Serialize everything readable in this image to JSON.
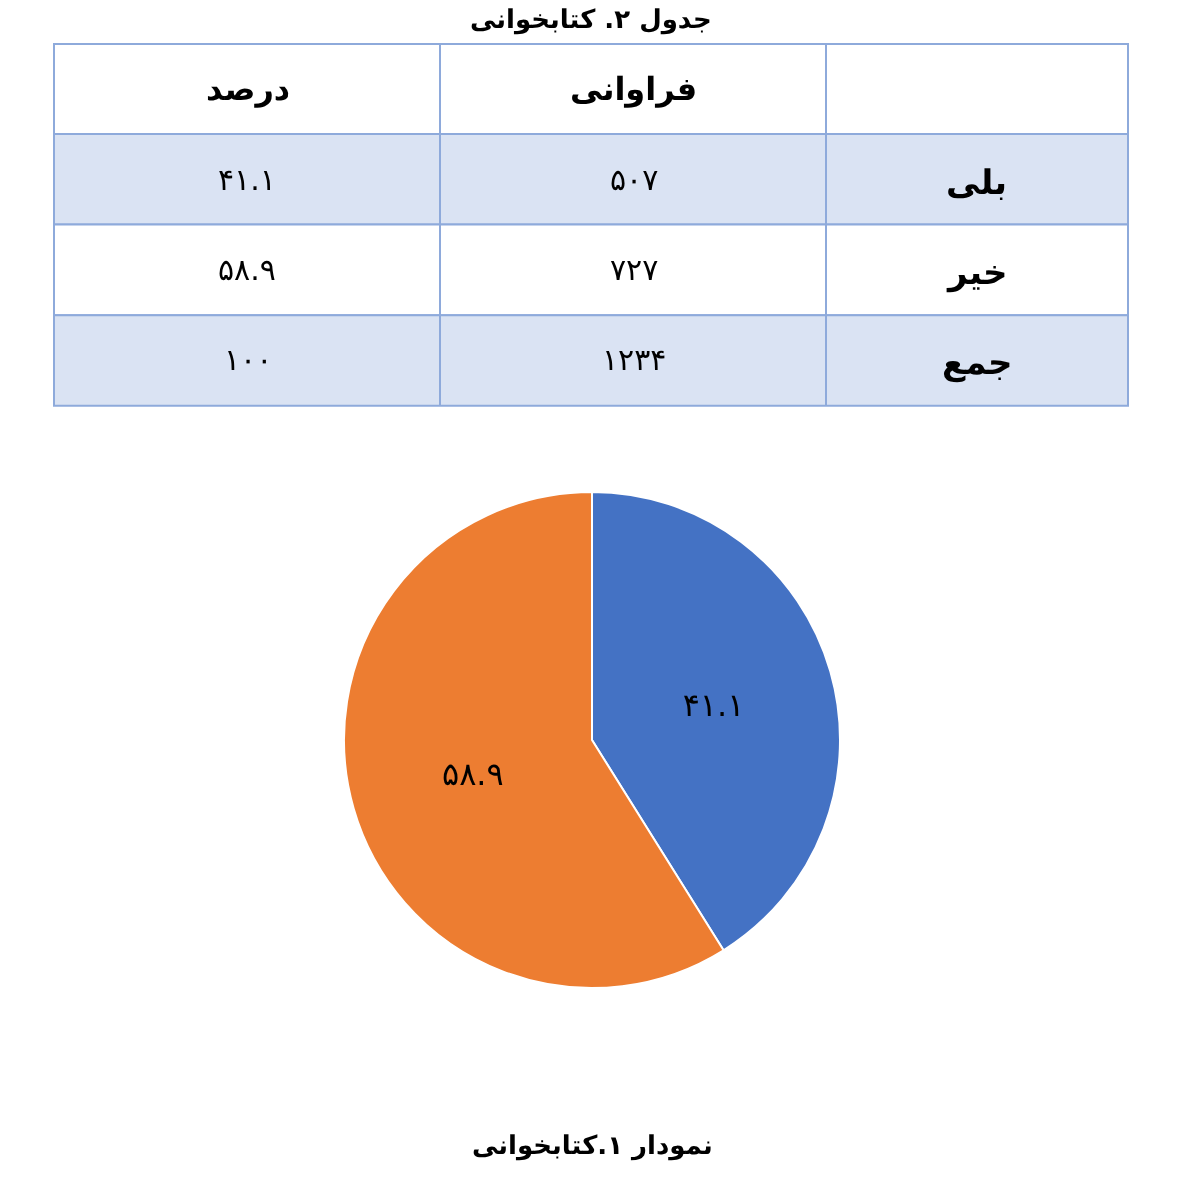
{
  "chart_data": [
    {
      "type": "other",
      "title": "جدول ۲. کتابخوانی",
      "categories": [
        "درصد",
        "فراوانی",
        null
      ],
      "y2_categories": [
        "بلی",
        "خیر",
        "جمع"
      ],
      "cell_labels": [
        [
          "۴۱.۱",
          "۵۰۷"
        ],
        [
          "۵۸.۹",
          "۷۲۷"
        ],
        [
          "۱۰۰",
          "۱۲۳۴"
        ]
      ],
      "colors": [
        "#ffffff",
        "#dae3f3",
        "#ffffff",
        "#dae3f3"
      ]
    },
    {
      "type": "pie",
      "categories": [
        null,
        null
      ],
      "values": [
        41.1,
        58.9
      ],
      "colors": [
        "#4472c4",
        "#ed7d31"
      ],
      "value_labels": [
        "۴۱.۱",
        "۵۸.۹"
      ],
      "annotations": [
        "نمودار ۱.کتابخوانی"
      ]
    }
  ]
}
